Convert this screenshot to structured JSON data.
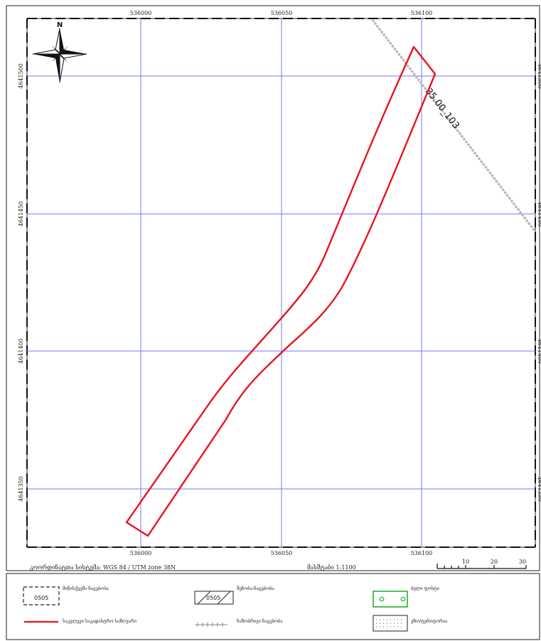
{
  "top_note": "",
  "grid": {
    "x_ticks": [
      "536000",
      "536050",
      "536100"
    ],
    "y_ticks": [
      "4641500",
      "4641450",
      "4641400",
      "4641350"
    ]
  },
  "crs_label": "კოორდინატთა სისტემა: WGS 84 / UTM zone 38N",
  "scale_label": "მასშტაბი 1:1100",
  "scale_bar": {
    "labels": [
      "10",
      "20",
      "30"
    ]
  },
  "compass": {
    "north_label": "N"
  },
  "line_label": "35.00_103",
  "legend": {
    "items": [
      {
        "icon": "dashed-box-icon",
        "box_text": "0505",
        "label": "მიწისქვეშა ნაგებობა"
      },
      {
        "icon": "hatched-box-icon",
        "box_text": "0505",
        "label": "შენობა-ნაგებობა"
      },
      {
        "icon": "green-box-icon",
        "label": "ძელი ფოსტი"
      },
      {
        "icon": "red-line-icon",
        "label": "საკვლევი საკადასტრო საზღვარი"
      },
      {
        "icon": "cross-line-icon",
        "label": "ხაზობრივი ნაგებობა"
      },
      {
        "icon": "dotted-box-icon",
        "label": "ეზო/ტერიტორია"
      }
    ]
  },
  "colors": {
    "parcel": "#e8131f",
    "grid": "#6f78ff",
    "legend_green": "#21b42b",
    "utility": "#a0a0a0"
  }
}
